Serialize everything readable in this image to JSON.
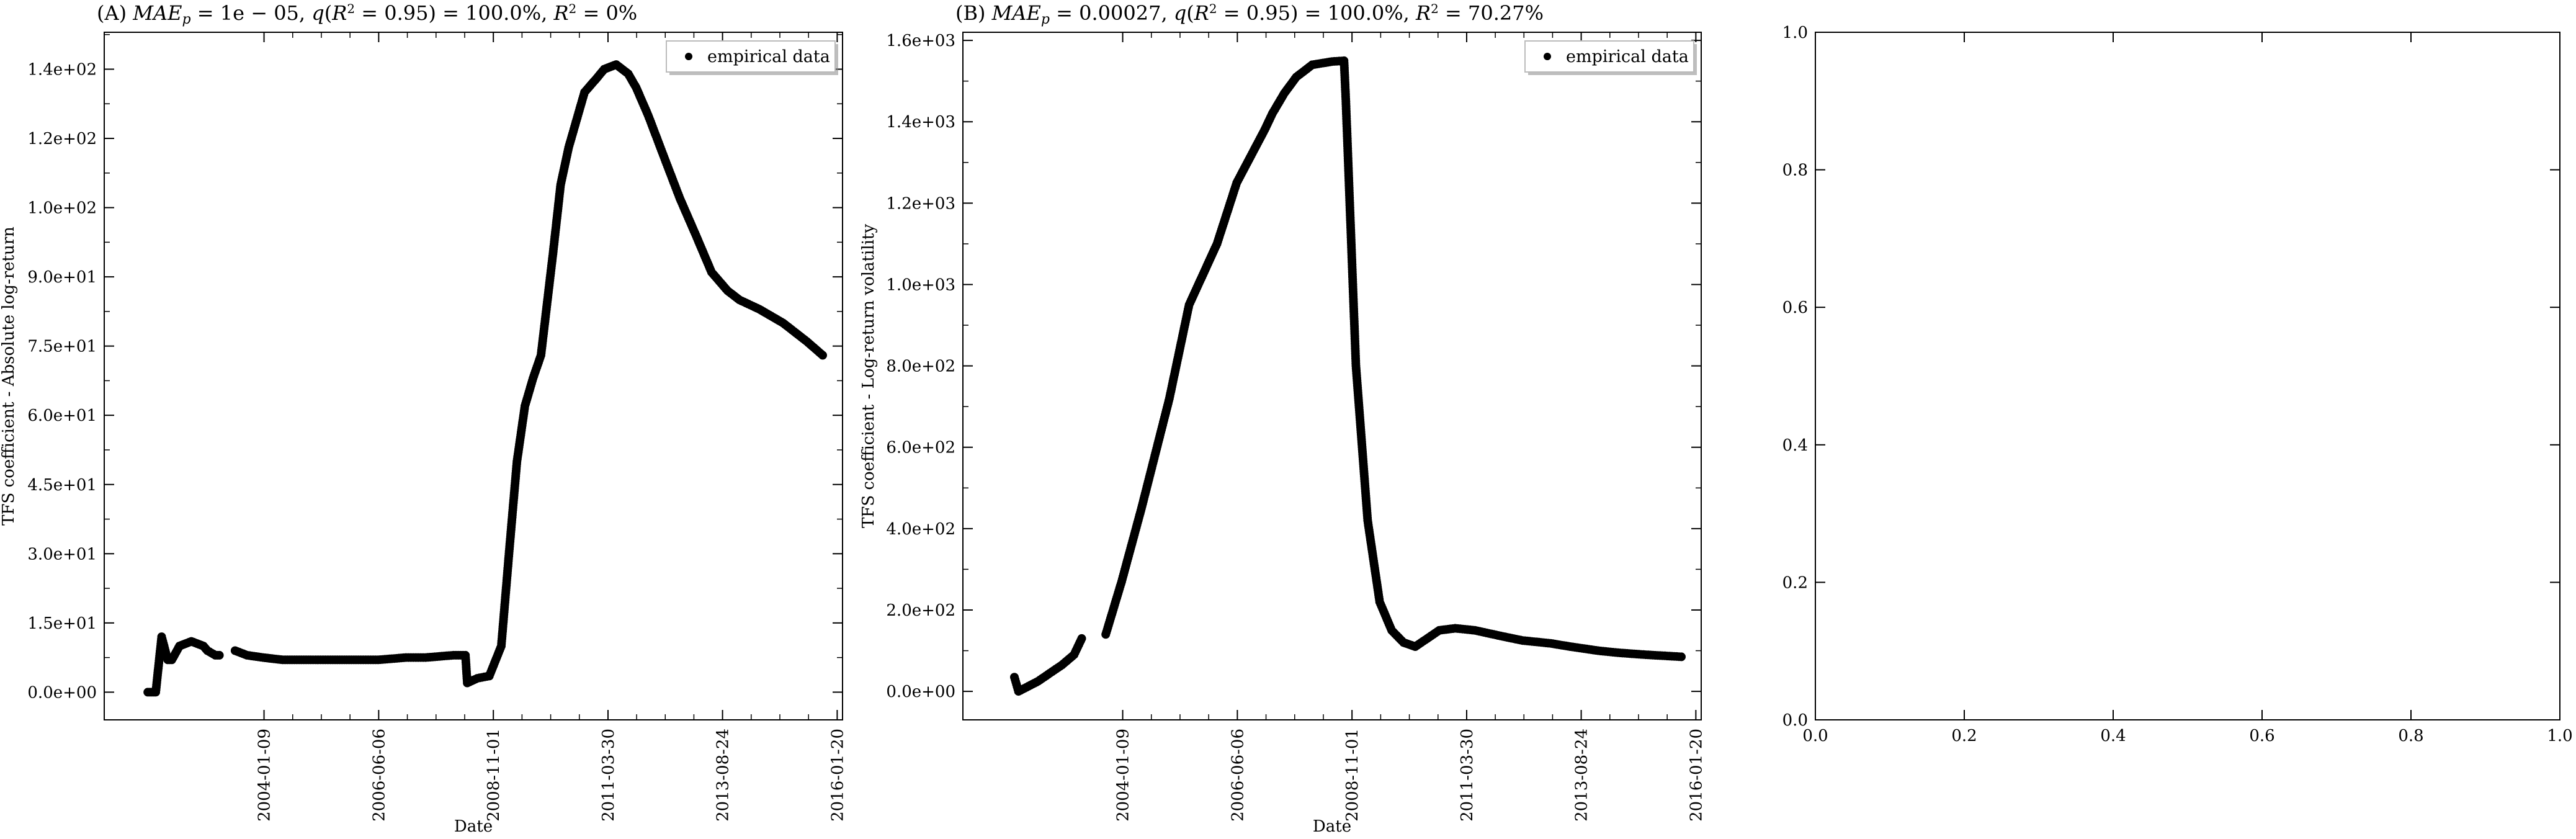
{
  "chart_data": [
    {
      "type": "scatter",
      "title": "(A) MAE_p = 1e − 05, q(R² = 0.95) = 100.0%, R² = 0%",
      "xlabel": "Date",
      "ylabel": "TFS coefficient - Absolute log-return",
      "legend": {
        "entries": [
          "empirical data"
        ],
        "placement": "top-right"
      },
      "grid": false,
      "xlim": [
        "2000-09-01",
        "2016-03-01"
      ],
      "ylim": [
        -6,
        143
      ],
      "xticks": [
        "2004-01-09",
        "2006-06-06",
        "2008-11-01",
        "2011-03-30",
        "2013-08-24",
        "2016-01-20"
      ],
      "yticks": [
        "0.0e+00",
        "1.5e+01",
        "3.0e+01",
        "4.5e+01",
        "6.0e+01",
        "7.5e+01",
        "9.0e+01",
        "1.0e+02",
        "1.2e+02",
        "1.4e+02"
      ],
      "ytick_values": [
        0,
        15,
        30,
        45,
        60,
        75,
        90,
        105,
        120,
        135
      ],
      "series": [
        {
          "name": "empirical data",
          "segments": [
            {
              "x": [
                "2001-08-01",
                "2001-10-01",
                "2001-11-15",
                "2002-01-01",
                "2002-02-01",
                "2002-04-01",
                "2002-07-01",
                "2002-10-01",
                "2002-11-01",
                "2003-01-01",
                "2003-02-01"
              ],
              "y": [
                0,
                0,
                12,
                7,
                7,
                10,
                11,
                10,
                9,
                8,
                8
              ]
            },
            {
              "x": [
                "2003-06-01",
                "2003-09-01",
                "2004-01-01",
                "2004-06-01",
                "2005-01-01",
                "2005-06-01",
                "2006-01-01",
                "2006-06-01",
                "2007-01-01",
                "2007-06-01",
                "2008-01-01",
                "2008-04-01",
                "2008-04-15",
                "2008-07-01",
                "2008-10-01",
                "2009-01-01",
                "2009-03-01",
                "2009-05-01",
                "2009-07-01",
                "2009-09-01",
                "2009-11-01",
                "2010-02-01",
                "2010-04-01",
                "2010-06-01",
                "2010-08-01",
                "2010-10-01",
                "2011-01-01",
                "2011-03-01",
                "2011-06-01",
                "2011-09-01",
                "2011-11-01",
                "2012-02-01",
                "2012-06-01",
                "2012-10-01",
                "2013-02-01",
                "2013-06-01",
                "2013-10-01",
                "2014-01-01",
                "2014-06-01",
                "2014-12-01",
                "2015-06-01",
                "2015-10-01"
              ],
              "y": [
                9,
                8,
                7.5,
                7,
                7,
                7,
                7,
                7,
                7.5,
                7.5,
                8,
                8,
                2,
                3,
                3.5,
                10,
                30,
                50,
                62,
                68,
                73,
                95,
                110,
                118,
                124,
                130,
                133,
                135,
                136,
                134,
                131,
                125,
                116,
                107,
                99,
                91,
                87,
                85,
                83,
                80,
                76,
                73
              ]
            }
          ]
        }
      ]
    },
    {
      "type": "scatter",
      "title": "(B) MAE_p = 0.00027, q(R² = 0.95) = 100.0%, R² = 70.27%",
      "xlabel": "Date",
      "ylabel": "TFS coefficient - Log-return volatility",
      "legend": {
        "entries": [
          "empirical data"
        ],
        "placement": "top-right"
      },
      "grid": false,
      "xlim": [
        "2000-09-01",
        "2016-03-01"
      ],
      "ylim": [
        -70,
        1620
      ],
      "xticks": [
        "2004-01-09",
        "2006-06-06",
        "2008-11-01",
        "2011-03-30",
        "2013-08-24",
        "2016-01-20"
      ],
      "yticks": [
        "0.0e+00",
        "2.0e+02",
        "4.0e+02",
        "6.0e+02",
        "8.0e+02",
        "1.0e+03",
        "1.2e+03",
        "1.4e+03",
        "1.6e+03"
      ],
      "ytick_values": [
        0,
        200,
        400,
        600,
        800,
        1000,
        1200,
        1400,
        1600
      ],
      "series": [
        {
          "name": "empirical data",
          "segments": [
            {
              "x": [
                "2001-10-01",
                "2001-11-01",
                "2002-01-01",
                "2002-04-01",
                "2002-07-01",
                "2002-10-01",
                "2003-01-01",
                "2003-03-01"
              ],
              "y": [
                35,
                0,
                10,
                25,
                45,
                65,
                90,
                130
              ]
            },
            {
              "x": [
                "2003-09-01",
                "2004-01-01",
                "2004-06-01",
                "2005-01-01",
                "2005-06-01",
                "2006-01-01",
                "2006-06-01",
                "2007-01-01",
                "2007-03-01",
                "2007-06-01",
                "2007-09-01",
                "2008-01-01",
                "2008-06-01",
                "2008-09-01",
                "2008-09-15",
                "2008-12-01",
                "2009-03-01",
                "2009-06-01",
                "2009-09-01",
                "2009-12-01",
                "2010-03-01",
                "2010-06-01",
                "2010-09-01",
                "2011-01-01",
                "2011-06-01",
                "2012-01-01",
                "2012-06-01",
                "2013-01-01",
                "2013-06-01",
                "2014-01-01",
                "2014-06-01",
                "2015-01-01",
                "2015-10-01"
              ],
              "y": [
                140,
                270,
                450,
                720,
                950,
                1100,
                1250,
                1380,
                1420,
                1470,
                1510,
                1540,
                1548,
                1550,
                1450,
                800,
                420,
                220,
                150,
                120,
                110,
                130,
                150,
                155,
                150,
                135,
                125,
                118,
                110,
                100,
                95,
                90,
                85
              ]
            }
          ]
        }
      ]
    },
    {
      "type": "scatter",
      "title": "",
      "xlabel": "",
      "ylabel": "",
      "grid": false,
      "xlim": [
        0,
        1
      ],
      "ylim": [
        0,
        1
      ],
      "xticks": [
        "0.0",
        "0.2",
        "0.4",
        "0.6",
        "0.8",
        "1.0"
      ],
      "xtick_values": [
        0,
        0.2,
        0.4,
        0.6,
        0.8,
        1.0
      ],
      "yticks": [
        "0.0",
        "0.2",
        "0.4",
        "0.6",
        "0.8",
        "1.0"
      ],
      "ytick_values": [
        0,
        0.2,
        0.4,
        0.6,
        0.8,
        1.0
      ],
      "series": []
    }
  ]
}
